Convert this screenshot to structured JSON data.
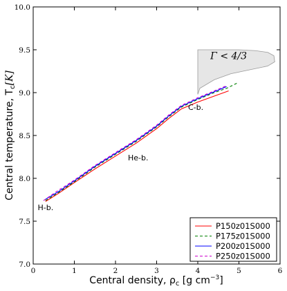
{
  "chart_data": {
    "type": "line",
    "xlabel": "Central density, ρ",
    "xlabel_sub": "c",
    "xlabel_unit": " [g cm",
    "xlabel_unit_sup": "−3",
    "xlabel_unit_end": "]",
    "ylabel": "Central temperature, T",
    "ylabel_sub": "c",
    "ylabel_unit": "[K]",
    "xlim": [
      0,
      6
    ],
    "ylim": [
      7.0,
      10.0
    ],
    "xticks": [
      "0",
      "1",
      "2",
      "3",
      "4",
      "5",
      "6"
    ],
    "yticks": [
      "7.0",
      "7.5",
      "8.0",
      "8.5",
      "9.0",
      "9.5",
      "10.0"
    ],
    "series": [
      {
        "name": "P150z01S000",
        "color": "#ff0000",
        "dash": "solid",
        "x": [
          0.3,
          0.6,
          1.0,
          1.5,
          2.0,
          2.5,
          3.0,
          3.3,
          3.6,
          4.0,
          4.4,
          4.75
        ],
        "y": [
          7.73,
          7.82,
          7.95,
          8.11,
          8.26,
          8.41,
          8.58,
          8.7,
          8.81,
          8.89,
          8.96,
          9.02
        ]
      },
      {
        "name": "P175z01S000",
        "color": "#008000",
        "dash": "dashed",
        "x": [
          0.3,
          0.6,
          1.0,
          1.5,
          2.0,
          2.5,
          3.0,
          3.3,
          3.6,
          4.0,
          4.4,
          4.7,
          4.95
        ],
        "y": [
          7.74,
          7.83,
          7.96,
          8.13,
          8.28,
          8.43,
          8.6,
          8.72,
          8.83,
          8.92,
          9.0,
          9.05,
          9.11
        ]
      },
      {
        "name": "P200z01S000",
        "color": "#0000ff",
        "dash": "solid",
        "x": [
          0.28,
          0.6,
          1.0,
          1.5,
          2.0,
          2.5,
          3.0,
          3.3,
          3.6,
          4.0,
          4.4,
          4.7
        ],
        "y": [
          7.75,
          7.84,
          7.97,
          8.14,
          8.29,
          8.44,
          8.61,
          8.73,
          8.84,
          8.93,
          9.01,
          9.07
        ]
      },
      {
        "name": "P250z01S000",
        "color": "#cc00cc",
        "dash": "dashed",
        "x": [
          0.25,
          0.55,
          1.0,
          1.5,
          2.0,
          2.5,
          3.0,
          3.3,
          3.6,
          4.0,
          4.4,
          4.7
        ],
        "y": [
          7.74,
          7.84,
          7.98,
          8.15,
          8.3,
          8.45,
          8.62,
          8.74,
          8.85,
          8.94,
          9.02,
          9.08
        ]
      }
    ],
    "region": {
      "label": "Γ < 4/3",
      "fill": "#e6e6e6",
      "stroke": "#999999",
      "x": [
        4.0,
        4.05,
        4.5,
        5.0,
        5.4,
        5.7,
        5.85,
        5.87,
        5.7,
        5.3,
        4.8,
        4.4,
        4.05,
        4.0
      ],
      "y": [
        9.5,
        9.5,
        9.5,
        9.5,
        9.49,
        9.47,
        9.43,
        9.36,
        9.31,
        9.27,
        9.22,
        9.15,
        9.05,
        8.98
      ]
    },
    "annotations": [
      {
        "text": "H-b.",
        "x": 0.3,
        "y": 7.63
      },
      {
        "text": "He-b.",
        "x": 2.55,
        "y": 8.21
      },
      {
        "text": "C-b.",
        "x": 3.95,
        "y": 8.8
      }
    ],
    "legend_position": "bottom-right",
    "grid": false
  }
}
